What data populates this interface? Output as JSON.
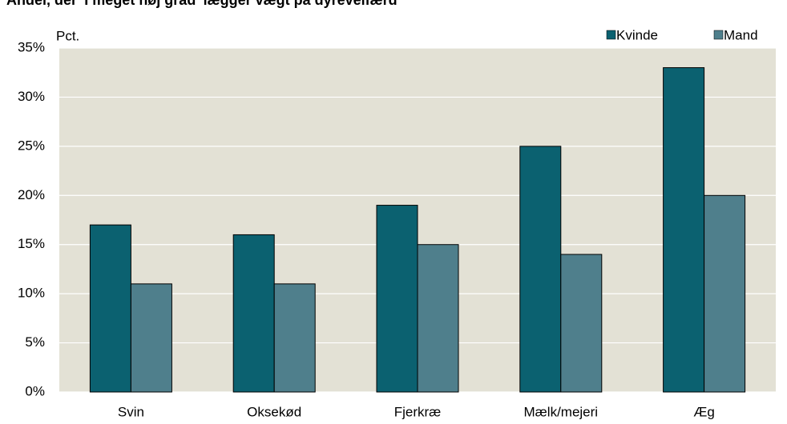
{
  "chart_data": {
    "type": "bar",
    "title": "Andel, der 'I meget høj grad' lægger vægt på dyrevelfærd",
    "y_label": "Pct.",
    "categories": [
      "Svin",
      "Oksekød",
      "Fjerkræ",
      "Mælk/mejeri",
      "Æg"
    ],
    "series": [
      {
        "name": "Kvinde",
        "color": "#0b6170",
        "values": [
          17,
          16,
          19,
          25,
          33
        ]
      },
      {
        "name": "Mand",
        "color": "#4f7f8c",
        "values": [
          11,
          11,
          15,
          14,
          20
        ]
      }
    ],
    "ylim": [
      0,
      35
    ],
    "yticks": [
      {
        "value": 0,
        "label": "0%"
      },
      {
        "value": 5,
        "label": "5%"
      },
      {
        "value": 10,
        "label": "10%"
      },
      {
        "value": 15,
        "label": "15%"
      },
      {
        "value": 20,
        "label": "20%"
      },
      {
        "value": 25,
        "label": "25%"
      },
      {
        "value": 30,
        "label": "30%"
      },
      {
        "value": 35,
        "label": "35%"
      }
    ],
    "grid": true,
    "legend": "top-right"
  }
}
